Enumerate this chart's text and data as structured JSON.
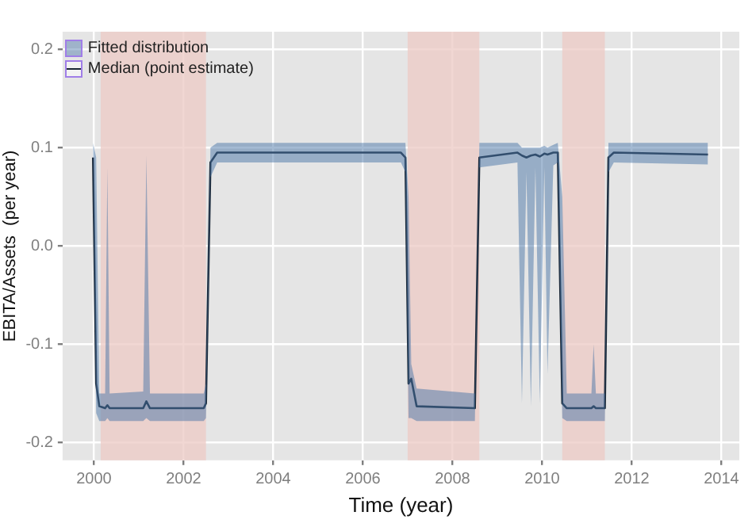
{
  "chart_data": {
    "type": "line",
    "xlabel": "Time (year)",
    "ylabel": "EBITA/Assets  (per year)",
    "annotations": [
      "Fitted distribution"
    ],
    "xlim": [
      1999.3,
      2014.4
    ],
    "xticks": [
      2000,
      2002,
      2004,
      2006,
      2008,
      2010,
      2012,
      2014
    ],
    "ylim": [
      -0.218,
      0.218
    ],
    "yticks": [
      -0.2,
      -0.1,
      {
        "value": 0,
        "label": "0.0"
      },
      0.1,
      0.2
    ],
    "grid": true,
    "legend": "top left",
    "marker": "none",
    "line_style": "solid",
    "x": [
      1999.98,
      2000.05,
      2000.12,
      2000.25,
      2000.3,
      2000.35,
      2001.1,
      2001.17,
      2001.25,
      2002.45,
      2002.5,
      2002.6,
      2002.75,
      2006.85,
      2006.95,
      2007.02,
      2007.08,
      2007.2,
      2008.5,
      2008.6,
      2009.45,
      2009.55,
      2009.65,
      2009.75,
      2009.85,
      2009.95,
      2010.05,
      2010.12,
      2010.25,
      2010.35,
      2010.45,
      2010.55,
      2011.1,
      2011.15,
      2011.2,
      2011.4,
      2011.48,
      2011.6,
      2013.7
    ],
    "series": [
      {
        "name": "Median (point estimate)",
        "type": "line",
        "color": "#1b2735",
        "values": [
          0.09,
          -0.14,
          -0.163,
          -0.165,
          -0.162,
          -0.165,
          -0.165,
          -0.158,
          -0.165,
          -0.165,
          -0.16,
          0.085,
          0.095,
          0.095,
          0.09,
          -0.14,
          -0.135,
          -0.163,
          -0.165,
          0.09,
          0.095,
          0.092,
          0.09,
          0.092,
          0.093,
          0.091,
          0.094,
          0.093,
          0.095,
          0.095,
          -0.16,
          -0.165,
          -0.165,
          -0.163,
          -0.165,
          -0.165,
          0.09,
          0.095,
          0.093
        ],
        "upper": [
          0.105,
          0.09,
          -0.15,
          -0.15,
          0.08,
          -0.15,
          -0.148,
          0.092,
          -0.15,
          -0.15,
          -0.14,
          0.1,
          0.105,
          0.105,
          0.105,
          0.05,
          -0.12,
          -0.145,
          -0.15,
          0.105,
          0.105,
          0.1,
          0.1,
          0.1,
          0.1,
          0.1,
          0.102,
          0.1,
          0.103,
          0.105,
          0.05,
          -0.15,
          -0.15,
          -0.1,
          -0.15,
          -0.15,
          0.105,
          0.105,
          0.105
        ],
        "lower": [
          0.08,
          -0.17,
          -0.178,
          -0.178,
          -0.175,
          -0.178,
          -0.178,
          -0.175,
          -0.178,
          -0.178,
          -0.175,
          0.07,
          0.085,
          0.085,
          0.075,
          -0.175,
          -0.175,
          -0.178,
          -0.178,
          0.08,
          0.085,
          -0.16,
          0.075,
          -0.163,
          0.08,
          -0.16,
          0.08,
          -0.13,
          0.082,
          0.085,
          -0.175,
          -0.178,
          -0.178,
          -0.178,
          -0.178,
          -0.178,
          0.075,
          0.085,
          0.083
        ]
      }
    ],
    "bands": [
      {
        "axis": "x",
        "from": 2000.15,
        "to": 2002.5,
        "color": "#eccac4"
      },
      {
        "axis": "x",
        "from": 2007.0,
        "to": 2008.6,
        "color": "#eccac4"
      },
      {
        "axis": "x",
        "from": 2010.45,
        "to": 2011.4,
        "color": "#eccac4"
      }
    ]
  }
}
